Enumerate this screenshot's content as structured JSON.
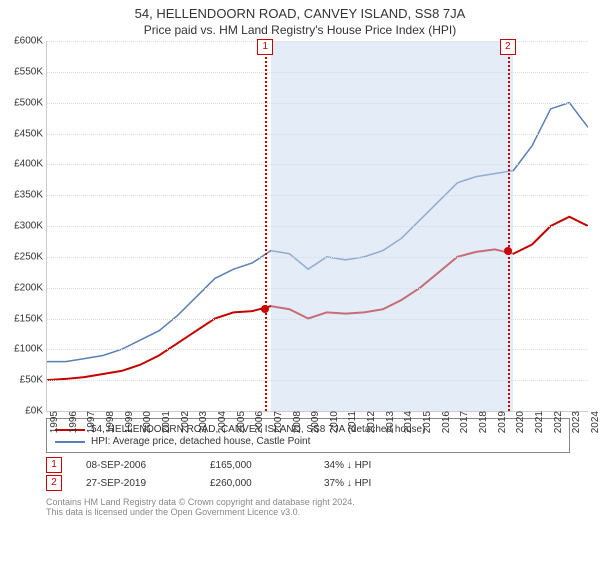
{
  "title": "54, HELLENDOORN ROAD, CANVEY ISLAND, SS8 7JA",
  "subtitle": "Price paid vs. HM Land Registry's House Price Index (HPI)",
  "chart": {
    "type": "line",
    "background_color": "#ffffff",
    "grid_color": "#dddddd",
    "axis_color": "#cccccc",
    "label_fontsize": 10,
    "ylim": [
      0,
      600
    ],
    "ytick_step": 50,
    "yprefix": "£",
    "ysuffix": "K",
    "xyears": [
      1995,
      1996,
      1997,
      1998,
      1999,
      2000,
      2001,
      2002,
      2003,
      2004,
      2005,
      2006,
      2007,
      2008,
      2009,
      2010,
      2011,
      2012,
      2013,
      2014,
      2015,
      2016,
      2017,
      2018,
      2019,
      2020,
      2021,
      2022,
      2023,
      2024
    ],
    "shade": {
      "from": 2007,
      "to": 2020,
      "color": "rgba(199,217,240,0.5)"
    },
    "events": [
      {
        "idx": 1,
        "year": 2006.7,
        "value": 165
      },
      {
        "idx": 2,
        "year": 2019.7,
        "value": 260
      }
    ],
    "event_line_color": "#c00",
    "series": [
      {
        "name": "property",
        "color": "#c40000",
        "width": 2,
        "points": [
          [
            1995,
            50
          ],
          [
            1996,
            52
          ],
          [
            1997,
            55
          ],
          [
            1998,
            60
          ],
          [
            1999,
            65
          ],
          [
            2000,
            75
          ],
          [
            2001,
            90
          ],
          [
            2002,
            110
          ],
          [
            2003,
            130
          ],
          [
            2004,
            150
          ],
          [
            2005,
            160
          ],
          [
            2006,
            162
          ],
          [
            2007,
            170
          ],
          [
            2008,
            165
          ],
          [
            2009,
            150
          ],
          [
            2010,
            160
          ],
          [
            2011,
            158
          ],
          [
            2012,
            160
          ],
          [
            2013,
            165
          ],
          [
            2014,
            180
          ],
          [
            2015,
            200
          ],
          [
            2016,
            225
          ],
          [
            2017,
            250
          ],
          [
            2018,
            258
          ],
          [
            2019,
            262
          ],
          [
            2020,
            255
          ],
          [
            2021,
            270
          ],
          [
            2022,
            300
          ],
          [
            2023,
            315
          ],
          [
            2024,
            300
          ]
        ]
      },
      {
        "name": "hpi",
        "color": "#5b7fb5",
        "width": 1.5,
        "points": [
          [
            1995,
            80
          ],
          [
            1996,
            80
          ],
          [
            1997,
            85
          ],
          [
            1998,
            90
          ],
          [
            1999,
            100
          ],
          [
            2000,
            115
          ],
          [
            2001,
            130
          ],
          [
            2002,
            155
          ],
          [
            2003,
            185
          ],
          [
            2004,
            215
          ],
          [
            2005,
            230
          ],
          [
            2006,
            240
          ],
          [
            2007,
            260
          ],
          [
            2008,
            255
          ],
          [
            2009,
            230
          ],
          [
            2010,
            250
          ],
          [
            2011,
            245
          ],
          [
            2012,
            250
          ],
          [
            2013,
            260
          ],
          [
            2014,
            280
          ],
          [
            2015,
            310
          ],
          [
            2016,
            340
          ],
          [
            2017,
            370
          ],
          [
            2018,
            380
          ],
          [
            2019,
            385
          ],
          [
            2020,
            390
          ],
          [
            2021,
            430
          ],
          [
            2022,
            490
          ],
          [
            2023,
            500
          ],
          [
            2024,
            460
          ]
        ]
      }
    ]
  },
  "legend": [
    {
      "color": "#c40000",
      "label": "54, HELLENDOORN ROAD, CANVEY ISLAND, SS8 7JA (detached house)"
    },
    {
      "color": "#5b7fb5",
      "label": "HPI: Average price, detached house, Castle Point"
    }
  ],
  "sales": [
    {
      "idx": "1",
      "date": "08-SEP-2006",
      "price": "£165,000",
      "delta": "34% ↓ HPI"
    },
    {
      "idx": "2",
      "date": "27-SEP-2019",
      "price": "£260,000",
      "delta": "37% ↓ HPI"
    }
  ],
  "footer": {
    "l1": "Contains HM Land Registry data © Crown copyright and database right 2024.",
    "l2": "This data is licensed under the Open Government Licence v3.0."
  }
}
